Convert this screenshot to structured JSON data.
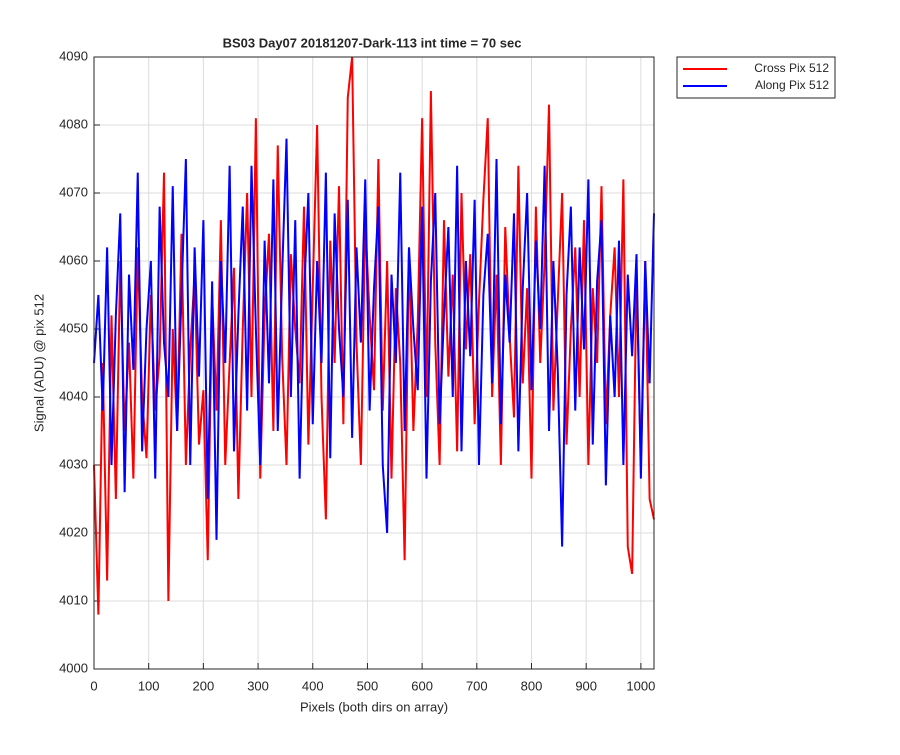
{
  "chart_data": {
    "type": "line",
    "title": "BS03 Day07 20181207-Dark-113 int time = 70 sec",
    "xlabel": "Pixels (both dirs on array)",
    "ylabel": "Signal (ADU) @ pix 512",
    "x": [
      0,
      8,
      16,
      24,
      32,
      40,
      48,
      56,
      64,
      72,
      80,
      88,
      96,
      104,
      112,
      120,
      128,
      136,
      144,
      152,
      160,
      168,
      176,
      184,
      192,
      200,
      208,
      216,
      224,
      232,
      240,
      248,
      256,
      264,
      272,
      280,
      288,
      296,
      304,
      312,
      320,
      328,
      336,
      344,
      352,
      360,
      368,
      376,
      384,
      392,
      400,
      408,
      416,
      424,
      432,
      440,
      448,
      456,
      464,
      472,
      480,
      488,
      496,
      504,
      512,
      520,
      528,
      536,
      544,
      552,
      560,
      568,
      576,
      584,
      592,
      600,
      608,
      616,
      624,
      632,
      640,
      648,
      656,
      664,
      672,
      680,
      688,
      696,
      704,
      712,
      720,
      728,
      736,
      744,
      752,
      760,
      768,
      776,
      784,
      792,
      800,
      808,
      816,
      824,
      832,
      840,
      848,
      856,
      864,
      872,
      880,
      888,
      896,
      904,
      912,
      920,
      928,
      936,
      944,
      952,
      960,
      968,
      976,
      984,
      992,
      1000,
      1008,
      1016,
      1024
    ],
    "series": [
      {
        "name": "Cross Pix 512",
        "color": "#ff0000",
        "values": [
          4030,
          4008,
          4045,
          4013,
          4052,
          4025,
          4060,
          4035,
          4048,
          4028,
          4062,
          4040,
          4031,
          4055,
          4038,
          4046,
          4073,
          4010,
          4050,
          4035,
          4064,
          4030,
          4047,
          4058,
          4033,
          4041,
          4016,
          4055,
          4038,
          4066,
          4030,
          4045,
          4059,
          4025,
          4050,
          4070,
          4040,
          4081,
          4028,
          4052,
          4064,
          4035,
          4077,
          4046,
          4030,
          4061,
          4050,
          4042,
          4068,
          4033,
          4056,
          4080,
          4040,
          4022,
          4063,
          4045,
          4071,
          4036,
          4084,
          4090,
          4048,
          4030,
          4066,
          4052,
          4041,
          4075,
          4038,
          4060,
          4028,
          4056,
          4045,
          4016,
          4062,
          4035,
          4051,
          4081,
          4040,
          4085,
          4048,
          4030,
          4066,
          4043,
          4058,
          4032,
          4070,
          4047,
          4061,
          4036,
          4054,
          4069,
          4081,
          4040,
          4058,
          4030,
          4065,
          4049,
          4037,
          4074,
          4042,
          4056,
          4028,
          4068,
          4045,
          4060,
          4083,
          4038,
          4054,
          4070,
          4033,
          4050,
          4062,
          4040,
          4066,
          4030,
          4056,
          4045,
          4071,
          4036,
          4052,
          4062,
          4040,
          4072,
          4018,
          4014,
          4058,
          4030,
          4060,
          4025,
          4022
        ]
      },
      {
        "name": "Along Pix 512",
        "color": "#0000ff",
        "values": [
          4045,
          4055,
          4038,
          4062,
          4030,
          4052,
          4067,
          4026,
          4058,
          4044,
          4073,
          4032,
          4050,
          4060,
          4028,
          4068,
          4048,
          4040,
          4071,
          4035,
          4055,
          4075,
          4030,
          4062,
          4043,
          4066,
          4025,
          4057,
          4019,
          4060,
          4045,
          4074,
          4032,
          4052,
          4068,
          4038,
          4074,
          4050,
          4030,
          4063,
          4042,
          4072,
          4035,
          4058,
          4078,
          4040,
          4066,
          4028,
          4055,
          4070,
          4036,
          4060,
          4045,
          4073,
          4031,
          4067,
          4050,
          4040,
          4069,
          4034,
          4062,
          4048,
          4072,
          4038,
          4056,
          4068,
          4030,
          4020,
          4058,
          4045,
          4073,
          4035,
          4062,
          4050,
          4041,
          4068,
          4028,
          4057,
          4070,
          4036,
          4052,
          4065,
          4040,
          4074,
          4032,
          4060,
          4046,
          4069,
          4030,
          4055,
          4064,
          4042,
          4075,
          4036,
          4058,
          4048,
          4067,
          4032,
          4056,
          4070,
          4041,
          4063,
          4050,
          4074,
          4035,
          4060,
          4044,
          4018,
          4055,
          4068,
          4038,
          4062,
          4047,
          4072,
          4033,
          4057,
          4066,
          4027,
          4052,
          4040,
          4063,
          4030,
          4058,
          4046,
          4061,
          4028,
          4060,
          4042,
          4067
        ]
      }
    ],
    "xlim": [
      0,
      1024
    ],
    "xticks": [
      0,
      100,
      200,
      300,
      400,
      500,
      600,
      700,
      800,
      900,
      1000
    ],
    "ylim": [
      4000,
      4090
    ],
    "yticks": [
      4000,
      4010,
      4020,
      4030,
      4040,
      4050,
      4060,
      4070,
      4080,
      4090
    ],
    "grid": true,
    "legend": "outside-top-right"
  }
}
